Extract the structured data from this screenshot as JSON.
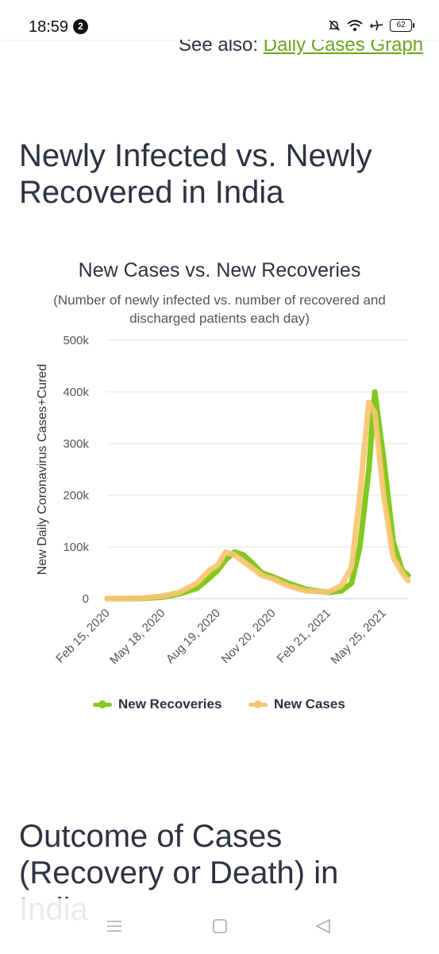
{
  "status": {
    "time": "18:59",
    "notification_count": "2",
    "battery": "62"
  },
  "see_also": {
    "prefix": "See also: ",
    "link": "Daily Cases Graph"
  },
  "sections": {
    "newly_title": "Newly Infected vs. Newly Recovered in India",
    "outcome_title": "Outcome of Cases (Recovery or Death) in India"
  },
  "colors": {
    "recoveries": "#82c91e",
    "cases": "#f8c471",
    "link": "#6aa51f",
    "text": "#2d3142"
  },
  "chart_data": {
    "type": "line",
    "title": "New Cases vs. New Recoveries",
    "subtitle": "(Number of newly infected vs. number of recovered and discharged patients each day)",
    "ylabel": "New Daily Coronavirus Cases+Cured",
    "ylim": [
      0,
      500000
    ],
    "yticks": [
      0,
      100000,
      200000,
      300000,
      400000,
      500000
    ],
    "ytick_labels": [
      "0",
      "100k",
      "200k",
      "300k",
      "400k",
      "500k"
    ],
    "xtick_labels": [
      "Feb 15, 2020",
      "May 18, 2020",
      "Aug 19, 2020",
      "Nov 20, 2020",
      "Feb 21, 2021",
      "May 25, 2021"
    ],
    "x": [
      "2020-02-15",
      "2020-03-15",
      "2020-04-15",
      "2020-05-18",
      "2020-06-15",
      "2020-07-15",
      "2020-08-05",
      "2020-08-19",
      "2020-09-01",
      "2020-09-16",
      "2020-10-01",
      "2020-10-15",
      "2020-11-01",
      "2020-11-20",
      "2020-12-15",
      "2021-01-15",
      "2021-02-21",
      "2021-03-15",
      "2021-04-01",
      "2021-04-15",
      "2021-04-30",
      "2021-05-10",
      "2021-05-25",
      "2021-06-10",
      "2021-06-25",
      "2021-07-05"
    ],
    "series": [
      {
        "name": "New Recoveries",
        "values": [
          0,
          50,
          500,
          3000,
          9000,
          20000,
          40000,
          55000,
          75000,
          90000,
          85000,
          70000,
          50000,
          42000,
          30000,
          18000,
          12000,
          15000,
          30000,
          100000,
          250000,
          400000,
          270000,
          110000,
          55000,
          45000
        ]
      },
      {
        "name": "New Cases",
        "values": [
          0,
          80,
          1000,
          5000,
          12000,
          30000,
          55000,
          65000,
          90000,
          85000,
          72000,
          60000,
          45000,
          38000,
          25000,
          15000,
          13000,
          25000,
          60000,
          200000,
          380000,
          360000,
          200000,
          80000,
          50000,
          35000
        ]
      }
    ],
    "legend": "bottom-center",
    "grid": true
  }
}
